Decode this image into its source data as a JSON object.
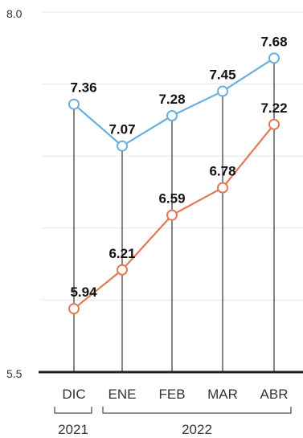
{
  "chart_data": {
    "type": "line",
    "categories": [
      "DIC",
      "ENE",
      "FEB",
      "MAR",
      "ABR"
    ],
    "years": [
      {
        "label": "2021",
        "categories": [
          "DIC"
        ]
      },
      {
        "label": "2022",
        "categories": [
          "ENE",
          "FEB",
          "MAR",
          "ABR"
        ]
      }
    ],
    "ylim": [
      5.5,
      8.0
    ],
    "yticks": [
      "5.5",
      "8.0"
    ],
    "series": [
      {
        "values": [
          7.36,
          7.07,
          7.28,
          7.45,
          7.68
        ],
        "labels": [
          "7.36",
          "7.07",
          "7.28",
          "7.45",
          "7.68"
        ],
        "color": "#6aaee0"
      },
      {
        "values": [
          5.94,
          6.21,
          6.59,
          6.78,
          7.22
        ],
        "labels": [
          "5.94",
          "6.21",
          "6.59",
          "6.78",
          "7.22"
        ],
        "color": "#e07a55"
      }
    ],
    "grid": true,
    "colors": {
      "axis": "#222222",
      "drop_line": "#444444",
      "grid": "#e6e6e6",
      "bracket": "#555555"
    }
  }
}
